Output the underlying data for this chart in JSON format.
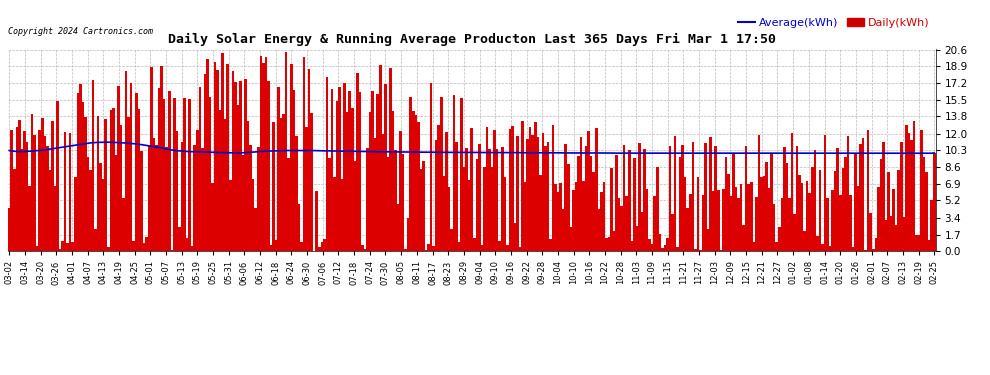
{
  "title": "Daily Solar Energy & Running Average Producton Last 365 Days Fri Mar 1 17:50",
  "copyright": "Copyright 2024 Cartronics.com",
  "legend_average": "Average(kWh)",
  "legend_daily": "Daily(kWh)",
  "yticks": [
    0.0,
    1.7,
    3.4,
    5.2,
    6.9,
    8.6,
    10.3,
    12.0,
    13.8,
    15.5,
    17.2,
    18.9,
    20.6
  ],
  "ymax": 20.6,
  "ymin": 0.0,
  "bar_color": "#dd0000",
  "avg_color": "#0000cc",
  "daily_color": "#cc0000",
  "background_color": "#ffffff",
  "grid_color": "#bbbbbb",
  "num_days": 365,
  "x_labels": [
    "03-02",
    "03-14",
    "03-20",
    "03-26",
    "04-01",
    "04-07",
    "04-13",
    "04-19",
    "04-25",
    "05-01",
    "05-07",
    "05-13",
    "05-19",
    "05-25",
    "05-31",
    "06-06",
    "06-12",
    "06-18",
    "06-24",
    "06-30",
    "07-06",
    "07-12",
    "07-18",
    "07-24",
    "07-30",
    "08-05",
    "08-11",
    "08-17",
    "08-23",
    "08-29",
    "09-04",
    "09-10",
    "09-16",
    "09-22",
    "09-28",
    "10-04",
    "10-10",
    "10-16",
    "10-22",
    "10-28",
    "11-03",
    "11-09",
    "11-15",
    "11-21",
    "11-27",
    "12-03",
    "12-09",
    "12-15",
    "12-21",
    "12-27",
    "01-02",
    "01-08",
    "01-14",
    "01-20",
    "01-26",
    "02-01",
    "02-07",
    "02-13",
    "02-19",
    "02-25"
  ],
  "avg_values": [
    10.3,
    10.25,
    10.22,
    10.2,
    10.19,
    10.19,
    10.2,
    10.21,
    10.22,
    10.24,
    10.26,
    10.28,
    10.3,
    10.33,
    10.36,
    10.4,
    10.44,
    10.48,
    10.52,
    10.56,
    10.6,
    10.64,
    10.68,
    10.72,
    10.76,
    10.8,
    10.84,
    10.88,
    10.92,
    10.96,
    11.0,
    11.04,
    11.08,
    11.1,
    11.12,
    11.13,
    11.14,
    11.15,
    11.15,
    11.15,
    11.14,
    11.13,
    11.12,
    11.11,
    11.1,
    11.08,
    11.06,
    11.04,
    11.02,
    11.0,
    10.97,
    10.94,
    10.9,
    10.86,
    10.82,
    10.78,
    10.74,
    10.7,
    10.65,
    10.6,
    10.55,
    10.5,
    10.45,
    10.4,
    10.35,
    10.3,
    10.28,
    10.26,
    10.24,
    10.22,
    10.2,
    10.18,
    10.18,
    10.17,
    10.17,
    10.16,
    10.15,
    10.15,
    10.14,
    10.13,
    10.12,
    10.11,
    10.1,
    10.1,
    10.09,
    10.08,
    10.07,
    10.06,
    10.05,
    10.05,
    10.05,
    10.06,
    10.07,
    10.08,
    10.1,
    10.12,
    10.14,
    10.16,
    10.18,
    10.2,
    10.22,
    10.23,
    10.24,
    10.25,
    10.26,
    10.27,
    10.28,
    10.28,
    10.29,
    10.3,
    10.3,
    10.3,
    10.3,
    10.3,
    10.3,
    10.3,
    10.3,
    10.3,
    10.29,
    10.29,
    10.29,
    10.28,
    10.28,
    10.27,
    10.27,
    10.26,
    10.26,
    10.25,
    10.25,
    10.24,
    10.24,
    10.23,
    10.23,
    10.22,
    10.22,
    10.22,
    10.21,
    10.21,
    10.2,
    10.2,
    10.2,
    10.19,
    10.19,
    10.19,
    10.18,
    10.18,
    10.17,
    10.17,
    10.17,
    10.17,
    10.16,
    10.16,
    10.16,
    10.15,
    10.15,
    10.15,
    10.15,
    10.14,
    10.14,
    10.14,
    10.13,
    10.13,
    10.13,
    10.13,
    10.12,
    10.12,
    10.12,
    10.12,
    10.12,
    10.12,
    10.11,
    10.11,
    10.11,
    10.1,
    10.1,
    10.1,
    10.1,
    10.1,
    10.1,
    10.1,
    10.1,
    10.1,
    10.1,
    10.1,
    10.1,
    10.1,
    10.09,
    10.09,
    10.09,
    10.09,
    10.09,
    10.09,
    10.09,
    10.09,
    10.09,
    10.08,
    10.08,
    10.08,
    10.08,
    10.08,
    10.08,
    10.08,
    10.07,
    10.07,
    10.07,
    10.07,
    10.07,
    10.07,
    10.07,
    10.06,
    10.06,
    10.06,
    10.06,
    10.06,
    10.06,
    10.06,
    10.06,
    10.06,
    10.05,
    10.05,
    10.05,
    10.05,
    10.05,
    10.05,
    10.05,
    10.05,
    10.05,
    10.05,
    10.04,
    10.04,
    10.04,
    10.04,
    10.04,
    10.04,
    10.04,
    10.04,
    10.04,
    10.04,
    10.03,
    10.03,
    10.03,
    10.03,
    10.03,
    10.03,
    10.03,
    10.03,
    10.03,
    10.03,
    10.03,
    10.02,
    10.02,
    10.02,
    10.02,
    10.02,
    10.02,
    10.02,
    10.02,
    10.02,
    10.02,
    10.02,
    10.02,
    10.02,
    10.02,
    10.02,
    10.02,
    10.02,
    10.02,
    10.02,
    10.02,
    10.02,
    10.02,
    10.02,
    10.02,
    10.02,
    10.02,
    10.02,
    10.02,
    10.02,
    10.02,
    10.02,
    10.02,
    10.02,
    10.02,
    10.02,
    10.02,
    10.02,
    10.02,
    10.02,
    10.02,
    10.02,
    10.02,
    10.02,
    10.02,
    10.02,
    10.02,
    10.02,
    10.02,
    10.02,
    10.02,
    10.02,
    10.02,
    10.02,
    10.02,
    10.02,
    10.02,
    10.02,
    10.02,
    10.02,
    10.02,
    10.02,
    10.02,
    10.02,
    10.02,
    10.02,
    10.02,
    10.02,
    10.02,
    10.02,
    10.02,
    10.02,
    10.02,
    10.02,
    10.02,
    10.02,
    10.02,
    10.02,
    10.02,
    10.02,
    10.02,
    10.02,
    10.02,
    10.02,
    10.02,
    10.02,
    10.02,
    10.02,
    10.02,
    10.02,
    10.02,
    10.02,
    10.02,
    10.02,
    10.02,
    10.02,
    10.02,
    10.02,
    10.02,
    10.02,
    10.02,
    10.02,
    10.02,
    10.02,
    10.02,
    10.02,
    10.02,
    10.02,
    10.02,
    10.02,
    10.02,
    10.02,
    10.02,
    10.02,
    10.02,
    10.02,
    10.05
  ]
}
